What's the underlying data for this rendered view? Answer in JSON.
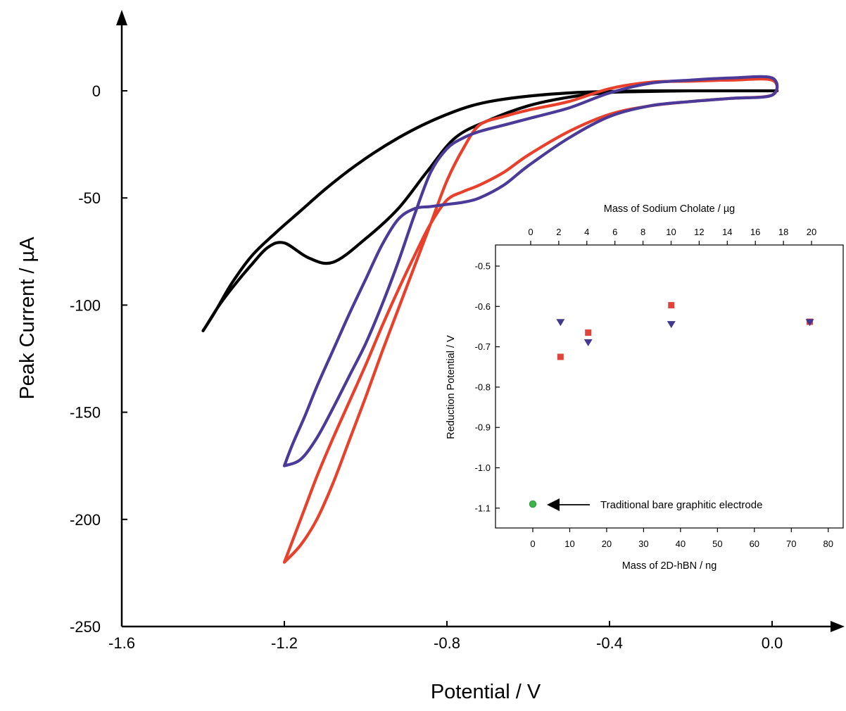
{
  "chart_data": [
    {
      "type": "line",
      "xlabel": "Potential / V",
      "ylabel": "Peak Current / µA",
      "xlim": [
        -1.6,
        0.18
      ],
      "ylim": [
        -250,
        30
      ],
      "xticks": [
        -1.6,
        -1.2,
        -0.8,
        -0.4,
        0.0
      ],
      "xtick_labels": [
        "-1.6",
        "-1.2",
        "-0.8",
        "-0.4",
        "0.0"
      ],
      "yticks": [
        0,
        -50,
        -100,
        -150,
        -200,
        -250
      ],
      "ytick_labels": [
        "0",
        "-50",
        "-100",
        "-150",
        "-200",
        "-250"
      ],
      "grid": false,
      "series": [
        {
          "color": "#000000",
          "x": [
            -1.4,
            -1.37,
            -1.33,
            -1.28,
            -1.22,
            -1.16,
            -1.1,
            -1.04,
            -0.98,
            -0.92,
            -0.86,
            -0.8,
            -0.74,
            -0.68,
            -0.6,
            -0.5,
            -0.4,
            -0.3,
            -0.2,
            -0.1,
            0.0,
            0.0,
            -0.1,
            -0.2,
            -0.3,
            -0.4,
            -0.5,
            -0.6,
            -0.7,
            -0.78,
            -0.85,
            -0.92,
            -1.0,
            -1.08,
            -1.14,
            -1.2,
            -1.24,
            -1.28,
            -1.32,
            -1.36,
            -1.39,
            -1.4
          ],
          "y": [
            -112,
            -103,
            -90,
            -77,
            -66,
            -56,
            -46,
            -37,
            -29,
            -22,
            -16,
            -11,
            -7,
            -4.5,
            -2.5,
            -1,
            -0.3,
            0,
            0,
            0,
            0,
            0,
            0,
            0,
            -0.3,
            -0.8,
            -3,
            -7,
            -14,
            -22,
            -38,
            -55,
            -69,
            -80,
            -78,
            -71,
            -73,
            -81,
            -90,
            -100,
            -109,
            -112
          ]
        },
        {
          "color": "#e8402a",
          "x": [
            -1.2,
            -1.18,
            -1.15,
            -1.12,
            -1.08,
            -1.04,
            -1.0,
            -0.96,
            -0.92,
            -0.88,
            -0.84,
            -0.8,
            -0.76,
            -0.72,
            -0.66,
            -0.6,
            -0.5,
            -0.4,
            -0.3,
            -0.2,
            -0.1,
            0.0,
            0.0,
            -0.1,
            -0.2,
            -0.3,
            -0.4,
            -0.5,
            -0.6,
            -0.66,
            -0.72,
            -0.76,
            -0.8,
            -0.84,
            -0.88,
            -0.92,
            -0.96,
            -1.0,
            -1.04,
            -1.08,
            -1.12,
            -1.16,
            -1.2
          ],
          "y": [
            -220,
            -210,
            -195,
            -180,
            -162,
            -145,
            -128,
            -110,
            -93,
            -77,
            -62,
            -51,
            -47,
            -44,
            -38,
            -30,
            -19,
            -11,
            -7,
            -5,
            -3.5,
            -2,
            5,
            5,
            4.5,
            4,
            1,
            -5,
            -9,
            -12,
            -16,
            -27,
            -42,
            -62,
            -82,
            -102,
            -122,
            -143,
            -163,
            -183,
            -200,
            -212,
            -220
          ]
        },
        {
          "color": "#4b3a98",
          "x": [
            -1.2,
            -1.18,
            -1.15,
            -1.12,
            -1.08,
            -1.04,
            -1.0,
            -0.96,
            -0.92,
            -0.88,
            -0.84,
            -0.8,
            -0.76,
            -0.72,
            -0.66,
            -0.6,
            -0.5,
            -0.4,
            -0.3,
            -0.2,
            -0.1,
            0.0,
            0.0,
            -0.1,
            -0.2,
            -0.3,
            -0.4,
            -0.5,
            -0.6,
            -0.66,
            -0.72,
            -0.76,
            -0.8,
            -0.84,
            -0.88,
            -0.92,
            -0.96,
            -1.0,
            -1.04,
            -1.08,
            -1.12,
            -1.16,
            -1.2
          ],
          "y": [
            -175,
            -165,
            -152,
            -138,
            -121,
            -104,
            -88,
            -72,
            -60,
            -55,
            -54,
            -53,
            -52,
            -50,
            -44,
            -35,
            -22,
            -12,
            -7,
            -5,
            -3.5,
            -2,
            6,
            6,
            5,
            3.5,
            -1,
            -8,
            -13,
            -16,
            -19,
            -22,
            -27,
            -38,
            -58,
            -80,
            -100,
            -118,
            -133,
            -148,
            -162,
            -172,
            -175
          ]
        }
      ]
    },
    {
      "type": "scatter",
      "xlabel": "Mass of 2D-hBN / ng",
      "x2label": "Mass of Sodium Cholate / µg",
      "ylabel": "Reduction Potential / V",
      "xlim": [
        -12,
        84
      ],
      "ylim": [
        -1.15,
        -0.47
      ],
      "xticks": [
        0,
        10,
        20,
        30,
        40,
        50,
        60,
        70,
        80
      ],
      "xtick_labels": [
        "0",
        "10",
        "20",
        "30",
        "40",
        "50",
        "60",
        "70",
        "80"
      ],
      "x2ticks": [
        0,
        2,
        4,
        6,
        8,
        10,
        12,
        14,
        16,
        18,
        20
      ],
      "x2tick_labels": [
        "0",
        "2",
        "4",
        "6",
        "8",
        "10",
        "12",
        "14",
        "16",
        "18",
        "20"
      ],
      "x2lim": [
        -0.3,
        22.1
      ],
      "yticks": [
        -0.5,
        -0.6,
        -0.7,
        -0.8,
        -0.9,
        -1.0,
        -1.1
      ],
      "ytick_labels": [
        "-0.5",
        "-0.6",
        "-0.7",
        "-0.8",
        "-0.9",
        "-1.0",
        "-1.1"
      ],
      "grid": false,
      "series": [
        {
          "color": "#e0443a",
          "marker": "square",
          "x": [
            7.5,
            15,
            37.5,
            75
          ],
          "y": [
            -0.725,
            -0.665,
            -0.597,
            -0.638
          ]
        },
        {
          "color": "#43398f",
          "marker": "triangle-down",
          "x": [
            7.5,
            15,
            37.5,
            75
          ],
          "y": [
            -0.64,
            -0.69,
            -0.645,
            -0.64
          ]
        },
        {
          "color": "#3db54a",
          "marker": "circle",
          "x": [
            0
          ],
          "y": [
            -1.09
          ]
        }
      ],
      "annotations": [
        {
          "text": "Traditional bare graphitic electrode",
          "x": 0,
          "y": -1.09
        }
      ]
    }
  ]
}
